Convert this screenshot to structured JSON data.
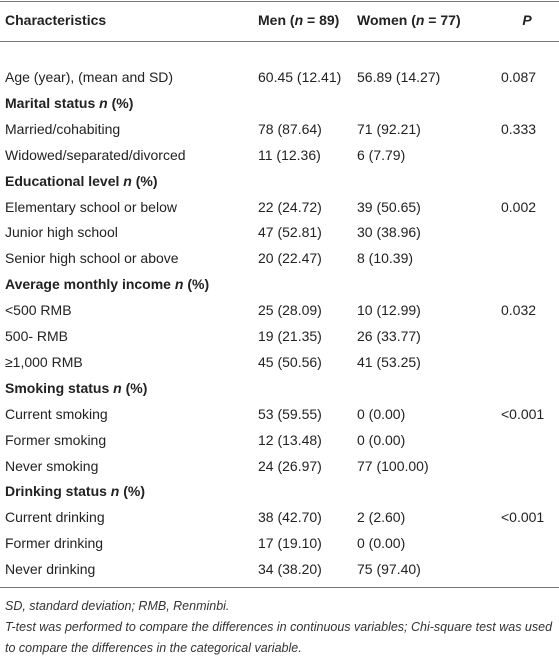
{
  "header": {
    "characteristic": "Characteristics",
    "men": {
      "pre": "Men (",
      "var": "n",
      "post": " = 89)"
    },
    "women": {
      "pre": "Women (",
      "var": "n",
      "post": " = 77)"
    },
    "p": "P"
  },
  "rows": [
    {
      "label": "Age (year), (mean and SD)",
      "men": "60.45 (12.41)",
      "women": "56.89 (14.27)",
      "p": "0.087"
    },
    {
      "section": "Marital status",
      "var": "n",
      "suffix": " (%)"
    },
    {
      "label": "Married/cohabiting",
      "men": "78 (87.64)",
      "women": "71 (92.21)",
      "p": "0.333"
    },
    {
      "label": "Widowed/separated/divorced",
      "men": "11 (12.36)",
      "women": "6 (7.79)"
    },
    {
      "section": "Educational level",
      "var": "n",
      "suffix": " (%)"
    },
    {
      "label": "Elementary school or below",
      "men": "22 (24.72)",
      "women": "39 (50.65)",
      "p": "0.002"
    },
    {
      "label": "Junior high school",
      "men": "47 (52.81)",
      "women": "30 (38.96)"
    },
    {
      "label": "Senior high school or above",
      "men": "20 (22.47)",
      "women": "8 (10.39)"
    },
    {
      "section": "Average monthly income",
      "var": "n",
      "suffix": " (%)"
    },
    {
      "label": "<500 RMB",
      "men": "25 (28.09)",
      "women": "10 (12.99)",
      "p": "0.032"
    },
    {
      "label": "500- RMB",
      "men": "19 (21.35)",
      "women": "26 (33.77)"
    },
    {
      "label": "≥1,000 RMB",
      "men": "45 (50.56)",
      "women": "41 (53.25)"
    },
    {
      "section": "Smoking status",
      "var": "n",
      "suffix": " (%)"
    },
    {
      "label": "Current smoking",
      "men": "53 (59.55)",
      "women": "0 (0.00)",
      "p": "<0.001"
    },
    {
      "label": "Former smoking",
      "men": "12 (13.48)",
      "women": "0 (0.00)"
    },
    {
      "label": "Never smoking",
      "men": "24 (26.97)",
      "women": "77 (100.00)"
    },
    {
      "section": "Drinking status",
      "var": "n",
      "suffix": " (%)"
    },
    {
      "label": "Current drinking",
      "men": "38 (42.70)",
      "women": "2 (2.60)",
      "p": "<0.001"
    },
    {
      "label": "Former drinking",
      "men": "17 (19.10)",
      "women": "0 (0.00)"
    },
    {
      "label": "Never drinking",
      "men": "34 (38.20)",
      "women": "75 (97.40)"
    }
  ],
  "footnotes": [
    "SD, standard deviation; RMB, Renminbi.",
    "T-test was performed to compare the differences in continuous variables; Chi-square test was used to compare the differences in the categorical variable."
  ]
}
